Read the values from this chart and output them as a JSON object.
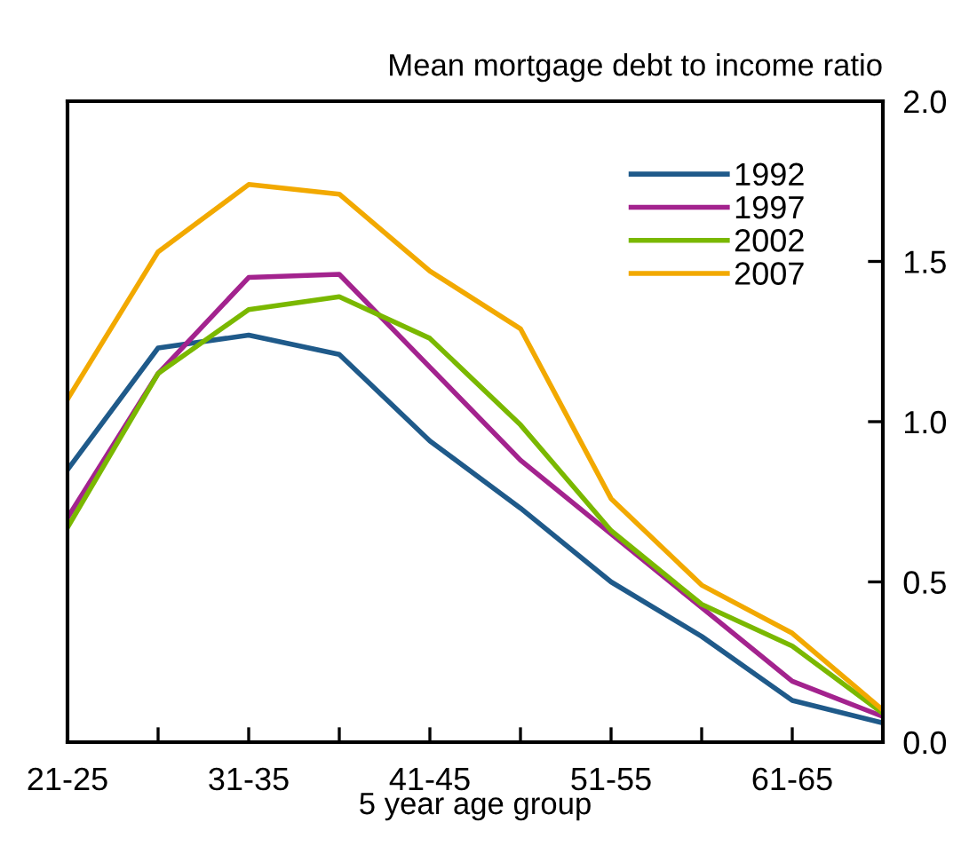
{
  "chart_data": {
    "type": "line",
    "xlabel": "5 year age group",
    "ylabel": "Mean mortgage debt to income ratio",
    "categories": [
      "21-25",
      null,
      "31-35",
      null,
      "41-45",
      null,
      "51-55",
      null,
      "61-65",
      null
    ],
    "series": [
      {
        "name": "1992",
        "color": "#1f5a8a",
        "values": [
          0.85,
          1.23,
          1.27,
          1.21,
          0.94,
          0.73,
          0.5,
          0.33,
          0.13,
          0.06
        ]
      },
      {
        "name": "1997",
        "color": "#a3238e",
        "values": [
          0.7,
          1.15,
          1.45,
          1.46,
          1.17,
          0.88,
          0.65,
          0.42,
          0.19,
          0.08
        ]
      },
      {
        "name": "2002",
        "color": "#7ab800",
        "values": [
          0.67,
          1.15,
          1.35,
          1.39,
          1.26,
          0.99,
          0.66,
          0.43,
          0.3,
          0.09
        ]
      },
      {
        "name": "2007",
        "color": "#f2a900",
        "values": [
          1.07,
          1.53,
          1.74,
          1.71,
          1.47,
          1.29,
          0.76,
          0.49,
          0.34,
          0.1
        ]
      }
    ],
    "ylim": [
      0,
      2
    ],
    "yticks": [
      {
        "value": 0,
        "label": "0.0"
      },
      0.5,
      {
        "value": 1,
        "label": "1.0"
      },
      1.5,
      {
        "value": 2,
        "label": "2.0"
      }
    ],
    "legend": "top right",
    "grid": false,
    "marker": "none",
    "line_style": "solid"
  }
}
